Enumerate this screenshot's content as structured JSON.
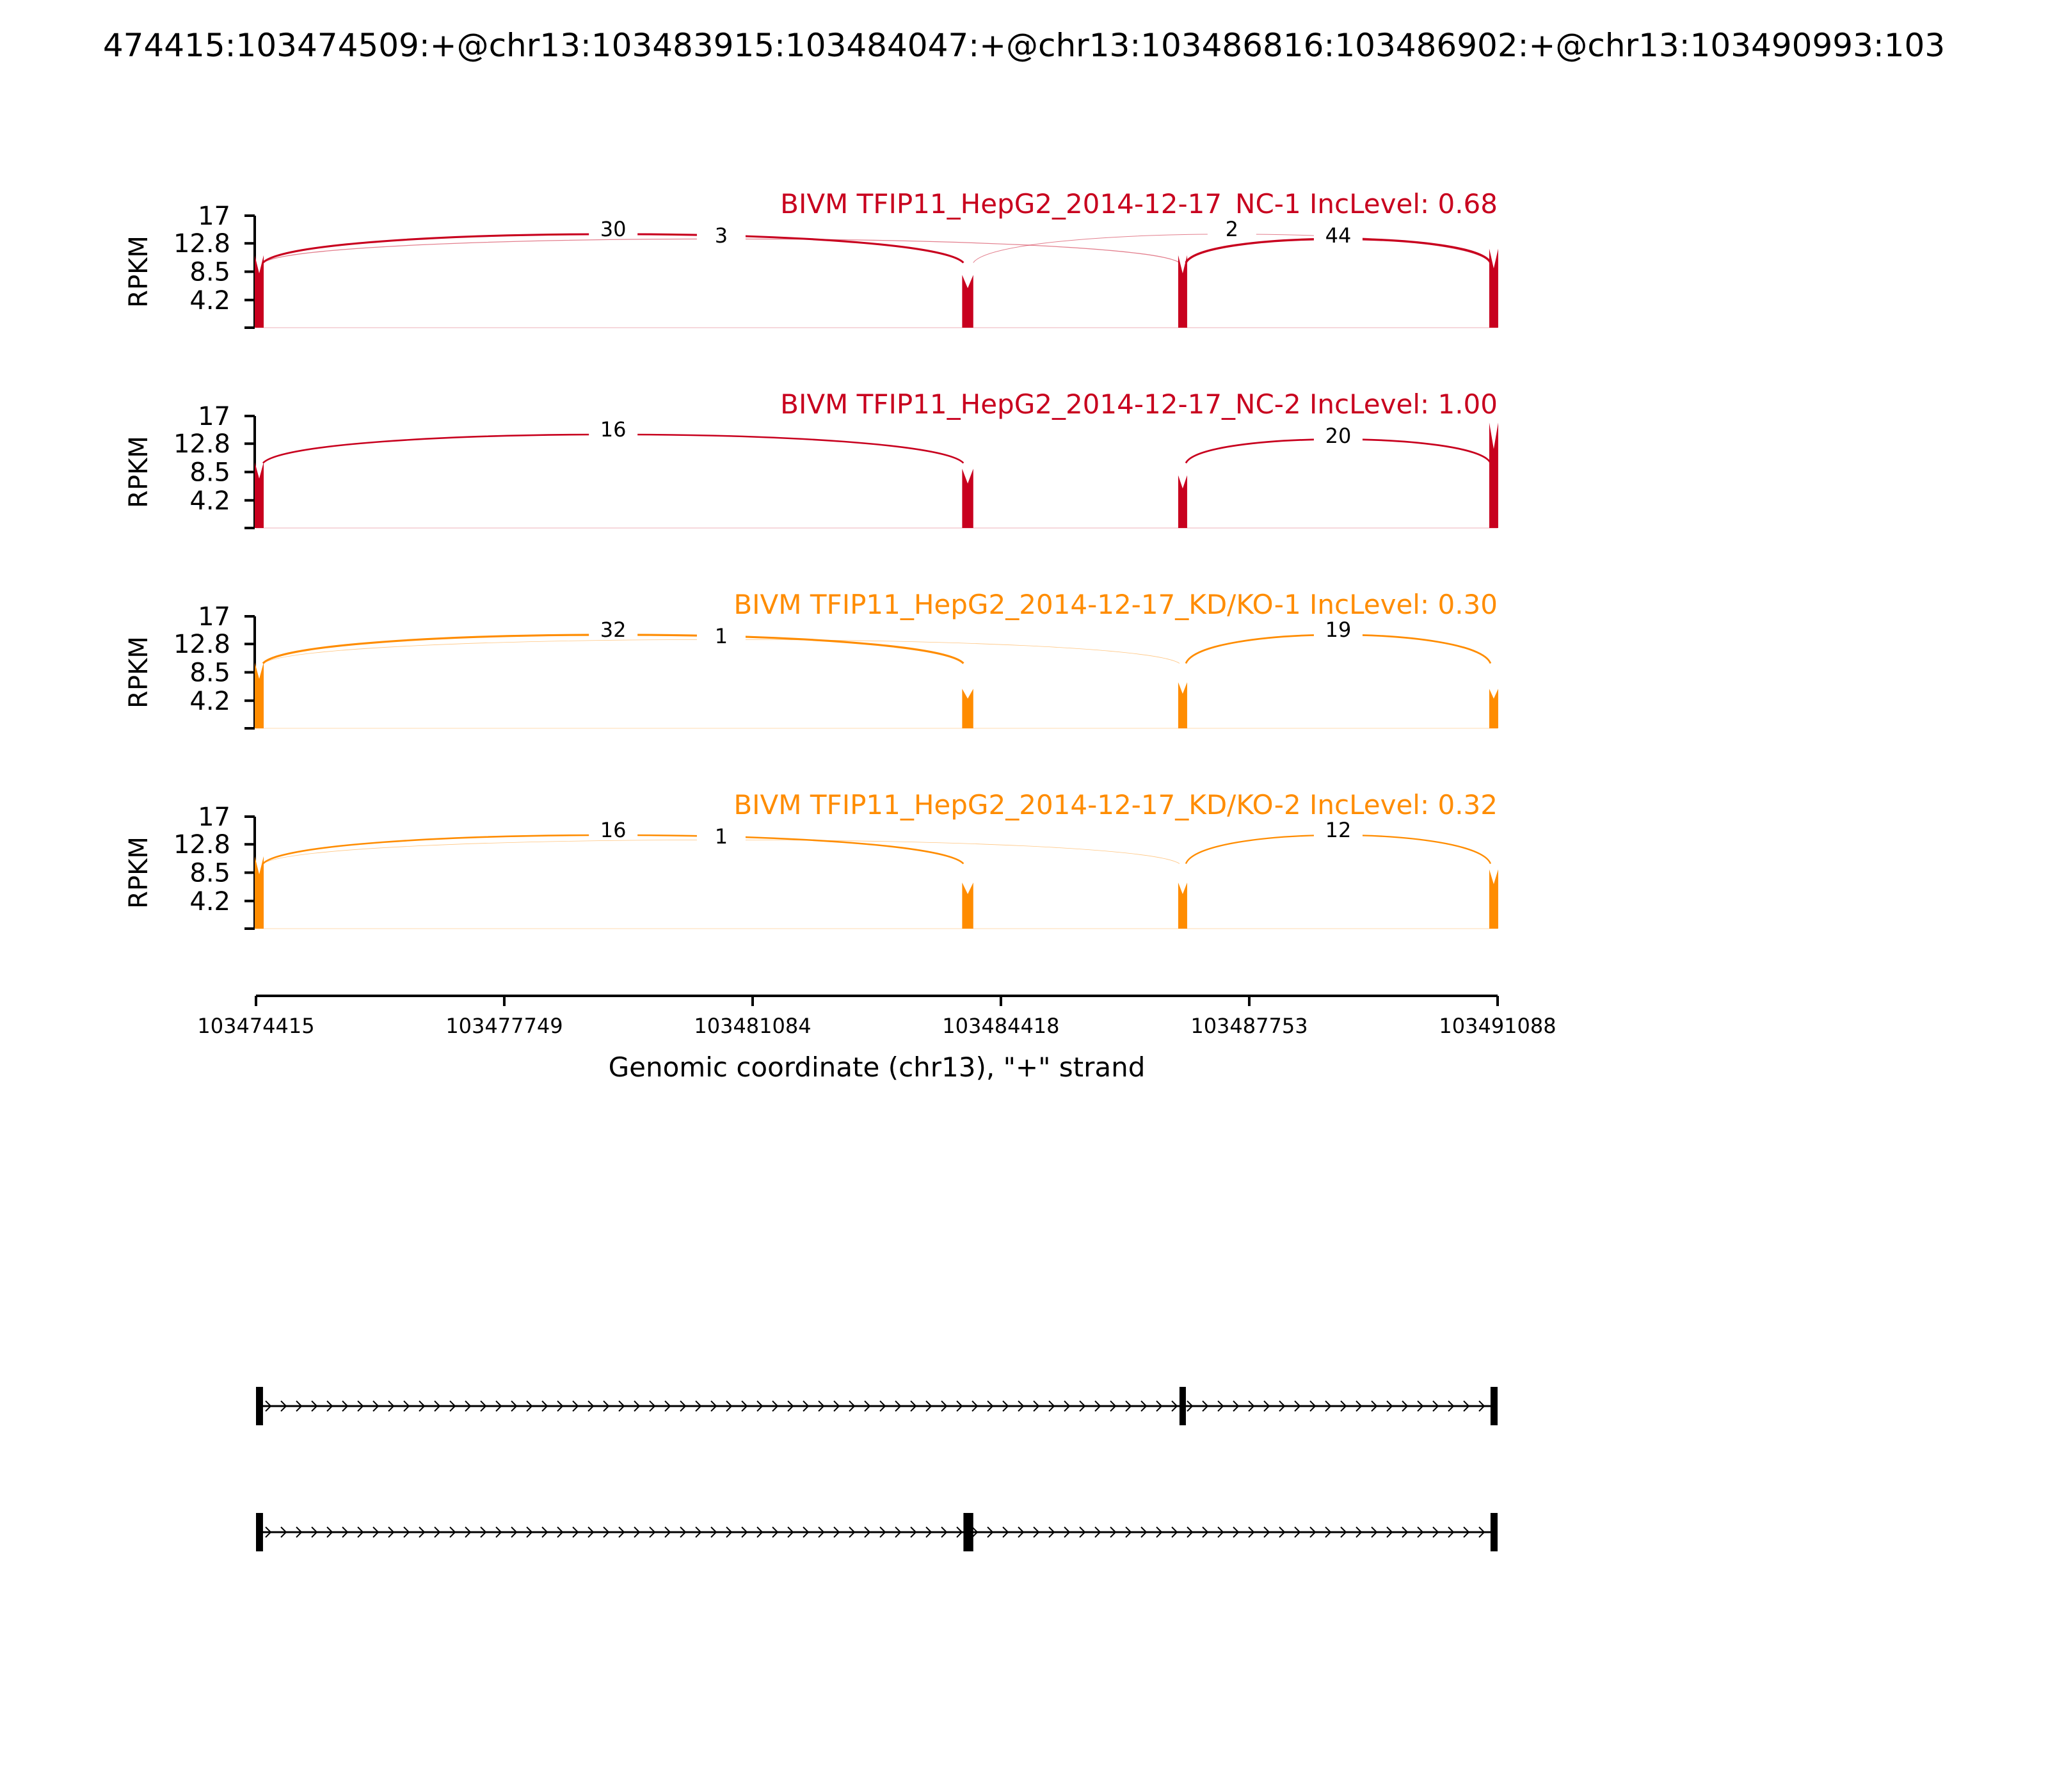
{
  "figure": {
    "title": "474415:103474509:+@chr13:103483915:103484047:+@chr13:103486816:103486902:+@chr13:103490993:103"
  },
  "chart_data": {
    "type": "sashimi",
    "title": "474415:103474509:+@chr13:103483915:103484047:+@chr13:103486816:103486902:+@chr13:103490993:103",
    "ylabel": "RPKM",
    "ylim": [
      0,
      17
    ],
    "yticks": [
      "17",
      "12.8",
      "8.5",
      "4.2"
    ],
    "xlabel": "Genomic coordinate (chr13), \"+\" strand",
    "xlim": [
      103474415,
      103491088
    ],
    "xticks": [
      "103474415",
      "103477749",
      "103481084",
      "103484418",
      "103487753",
      "103491088"
    ],
    "exons": [
      {
        "start": 103474415,
        "end": 103474509
      },
      {
        "start": 103483915,
        "end": 103484047
      },
      {
        "start": 103486816,
        "end": 103486902
      },
      {
        "start": 103490993,
        "end": 103491088
      }
    ],
    "samples": [
      {
        "label": "BIVM TFIP11_HepG2_2014-12-17_NC-1 IncLevel: 0.68",
        "color": "#c8001e",
        "exon_peaks": [
          11,
          8,
          11,
          12
        ],
        "junctions": [
          {
            "from": 103474509,
            "to": 103483915,
            "count": "30"
          },
          {
            "from": 103474509,
            "to": 103486816,
            "count": "3"
          },
          {
            "from": 103484047,
            "to": 103490993,
            "count": "2"
          },
          {
            "from": 103486902,
            "to": 103490993,
            "count": "44"
          }
        ]
      },
      {
        "label": "BIVM TFIP11_HepG2_2014-12-17_NC-2 IncLevel: 1.00",
        "color": "#c8001e",
        "exon_peaks": [
          10,
          9,
          8,
          16
        ],
        "junctions": [
          {
            "from": 103474509,
            "to": 103483915,
            "count": "16"
          },
          {
            "from": 103486902,
            "to": 103490993,
            "count": "20"
          }
        ]
      },
      {
        "label": "BIVM TFIP11_HepG2_2014-12-17_KD/KO-1 IncLevel: 0.30",
        "color": "#ff8c00",
        "exon_peaks": [
          10,
          6,
          7,
          6
        ],
        "junctions": [
          {
            "from": 103474509,
            "to": 103483915,
            "count": "32"
          },
          {
            "from": 103474509,
            "to": 103486816,
            "count": "1"
          },
          {
            "from": 103486902,
            "to": 103490993,
            "count": "19"
          }
        ]
      },
      {
        "label": "BIVM TFIP11_HepG2_2014-12-17_KD/KO-2 IncLevel: 0.32",
        "color": "#ff8c00",
        "exon_peaks": [
          11,
          7,
          7,
          9
        ],
        "junctions": [
          {
            "from": 103474509,
            "to": 103483915,
            "count": "16"
          },
          {
            "from": 103474509,
            "to": 103486816,
            "count": "1"
          },
          {
            "from": 103486902,
            "to": 103490993,
            "count": "12"
          }
        ]
      }
    ],
    "isoforms": [
      {
        "exons": [
          [
            103474415,
            103474509
          ],
          [
            103486816,
            103486902
          ],
          [
            103490993,
            103491088
          ]
        ]
      },
      {
        "exons": [
          [
            103474415,
            103474509
          ],
          [
            103483915,
            103484047
          ],
          [
            103490993,
            103491088
          ]
        ]
      }
    ]
  }
}
